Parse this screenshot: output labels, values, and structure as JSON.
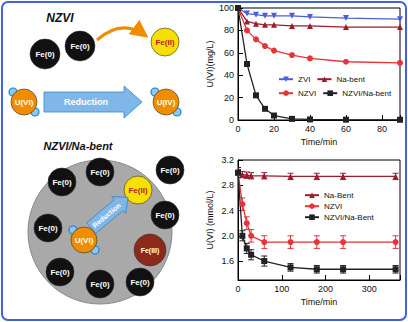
{
  "chart_data": [
    {
      "type": "line",
      "x_label": "Time/min",
      "y_label": "U(VI)(mg/L)",
      "x": [
        0,
        5,
        10,
        15,
        20,
        30,
        40,
        60,
        90
      ],
      "xlim": [
        0,
        90
      ],
      "xticks": [
        0,
        20,
        40,
        60,
        80
      ],
      "ylim": [
        0,
        100
      ],
      "yticks": [
        0,
        20,
        40,
        60,
        80,
        100
      ],
      "grid": false,
      "legend": "lower right",
      "series": [
        {
          "name": "ZVI",
          "color": "#4a5fd8",
          "marker": "triangle-down",
          "values": [
            100,
            95,
            94,
            93,
            93,
            93,
            92,
            91,
            90
          ]
        },
        {
          "name": "Na-bent",
          "color": "#9b1c2c",
          "marker": "triangle",
          "values": [
            100,
            88,
            86,
            85,
            85,
            84,
            84,
            83,
            83
          ]
        },
        {
          "name": "NZVI",
          "color": "#e8333a",
          "marker": "circle",
          "values": [
            100,
            80,
            72,
            66,
            62,
            58,
            55,
            52,
            51
          ]
        },
        {
          "name": "NZVI/Na-bent",
          "color": "#222222",
          "marker": "square",
          "values": [
            100,
            50,
            22,
            10,
            4,
            1,
            0.5,
            0.3,
            0.2
          ]
        }
      ]
    },
    {
      "type": "line",
      "x_label": "Time/min",
      "y_label": "U(VI) (mmol/L)",
      "x": [
        0,
        10,
        20,
        30,
        60,
        120,
        180,
        240,
        360
      ],
      "xlim": [
        0,
        370
      ],
      "xticks": [
        0,
        100,
        200,
        300
      ],
      "ylim": [
        1.3,
        3.2
      ],
      "yticks": [
        1.6,
        {
          "value": 2,
          "label": "2.0"
        },
        2.4,
        2.8,
        3.2
      ],
      "grid": false,
      "legend": "right",
      "series": [
        {
          "name": "Na-Bent",
          "color": "#9b1c2c",
          "marker": "triangle",
          "values": [
            3.0,
            2.97,
            2.96,
            2.95,
            2.95,
            2.94,
            2.94,
            2.94,
            2.94
          ],
          "errors": [
            0.05,
            0.05,
            0.05,
            0.05,
            0.05,
            0.05,
            0.05,
            0.05,
            0.05
          ]
        },
        {
          "name": "NZVI",
          "color": "#e8333a",
          "marker": "circle",
          "values": [
            3.0,
            2.5,
            2.2,
            2.0,
            1.9,
            1.9,
            1.9,
            1.9,
            1.9
          ],
          "errors": [
            0.08,
            0.1,
            0.1,
            0.1,
            0.1,
            0.1,
            0.1,
            0.1,
            0.1
          ]
        },
        {
          "name": "NZVI/Na-Bent",
          "color": "#222222",
          "marker": "square",
          "values": [
            3.0,
            2.0,
            1.8,
            1.7,
            1.6,
            1.5,
            1.47,
            1.47,
            1.47
          ],
          "errors": [
            0.08,
            0.08,
            0.08,
            0.08,
            0.08,
            0.06,
            0.06,
            0.06,
            0.06
          ]
        }
      ]
    }
  ],
  "diagram": {
    "top_title": "NZVI",
    "top_particles": [
      "Fe(0)",
      "Fe(0)"
    ],
    "top_released": "Fe(II)",
    "top_reactant": "U(VI)",
    "top_arrow": "Reduction",
    "top_product": "U(IV)",
    "bottom_title": "NZVI/Na-bent",
    "bottom_particles": [
      "Fe(0)",
      "Fe(0)",
      "Fe(0)",
      "Fe(0)",
      "Fe(0)",
      "Fe(0)",
      "Fe(0)",
      "Fe(0)"
    ],
    "bottom_released": "Fe(II)",
    "bottom_reactant": "U(VI)",
    "bottom_arrow": "Reduction",
    "bottom_product": "Fe(III)"
  }
}
